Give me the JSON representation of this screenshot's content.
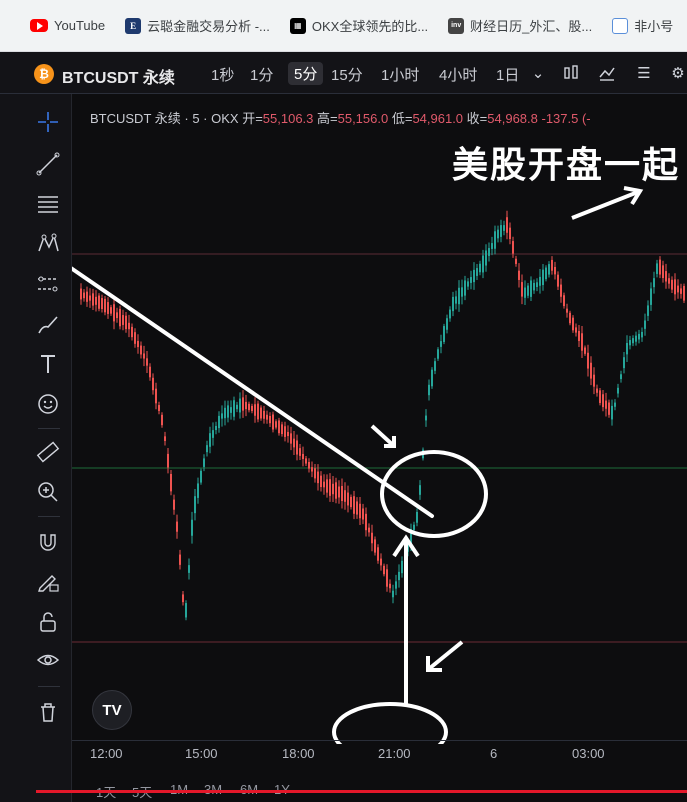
{
  "bookmarks": [
    {
      "icon": "youtube-icon",
      "label": "YouTube"
    },
    {
      "icon": "e-icon",
      "label": "云聪金融交易分析 -..."
    },
    {
      "icon": "okx-icon",
      "label": "OKX全球领先的比..."
    },
    {
      "icon": "investing-icon",
      "label": "财经日历_外汇、股..."
    },
    {
      "icon": "bar-icon",
      "label": "非小号"
    }
  ],
  "toolbar": {
    "symbol": "BTCUSDT 永续",
    "timeframes": [
      "1秒",
      "1分",
      "5分",
      "15分",
      "1小时",
      "4小时",
      "1日"
    ],
    "active_timeframe": "5分",
    "icons": [
      "chevron-down-icon",
      "candles-icon",
      "indicators-icon",
      "templates-icon",
      "settings-icon"
    ]
  },
  "legend": {
    "title": "BTCUSDT 永续 · 5 · OKX",
    "open_label": "开=",
    "open": "55,106.3",
    "high_label": "高=",
    "high": "55,156.0",
    "low_label": "低=",
    "low": "54,961.0",
    "close_label": "收=",
    "close": "54,968.8",
    "change": "-137.5 (-"
  },
  "overlay_text": "美股开盘一起",
  "left_tools": [
    "crosshair-icon",
    "trendline-icon",
    "fib-icon",
    "pattern-icon",
    "forecast-icon",
    "brush-icon",
    "text-icon",
    "emoji-icon",
    "ruler-icon",
    "zoom-in-icon",
    "magnet-icon",
    "lock-drawing-icon",
    "unlock-icon",
    "eye-icon",
    "trash-icon"
  ],
  "logo_text": "TV",
  "time_axis": [
    "12:00",
    "15:00",
    "18:00",
    "21:00",
    "6",
    "03:00"
  ],
  "ranges": [
    "1天",
    "5天",
    "1M",
    "3M",
    "6M",
    "1Y"
  ],
  "colors": {
    "up": "#26a69a",
    "down": "#ef5350",
    "annotation": "#ffffff",
    "accent_line": "#e4182a"
  }
}
